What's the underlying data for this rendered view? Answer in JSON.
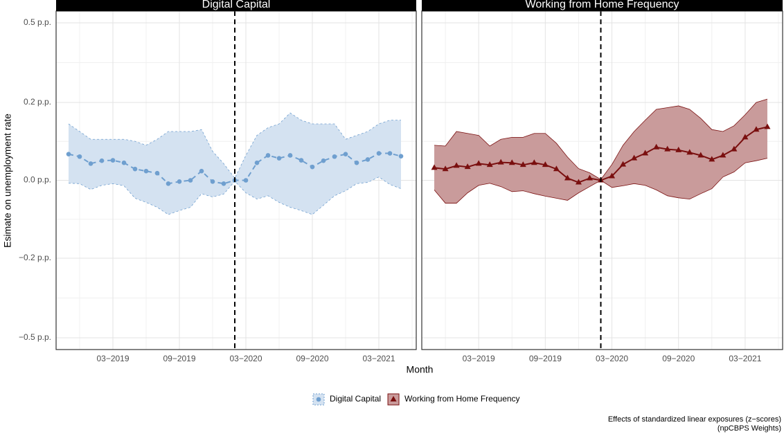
{
  "chart_data": [
    {
      "type": "line",
      "title": "Digital Capital",
      "xlabel": "Month",
      "ylabel": "Esimate on unemployment rate",
      "x": [
        "2018-11",
        "2018-12",
        "2019-01",
        "2019-02",
        "2019-03",
        "2019-04",
        "2019-05",
        "2019-06",
        "2019-07",
        "2019-08",
        "2019-09",
        "2019-10",
        "2019-11",
        "2019-12",
        "2020-01",
        "2020-02",
        "2020-03",
        "2020-04",
        "2020-05",
        "2020-06",
        "2020-07",
        "2020-08",
        "2020-09",
        "2020-10",
        "2020-11",
        "2020-12",
        "2021-01",
        "2021-02",
        "2021-03",
        "2021-04",
        "2021-05"
      ],
      "series": [
        {
          "name": "Digital Capital",
          "color": "#6f9fcf",
          "band_color": "#d4e2f1",
          "edge_color": "#6f9fcf",
          "linestyle": "dashed",
          "marker": "circle",
          "values": [
            0.063,
            0.057,
            0.04,
            0.047,
            0.048,
            0.042,
            0.027,
            0.022,
            0.017,
            -0.008,
            -0.003,
            0,
            0.022,
            -0.003,
            -0.008,
            0,
            0,
            0.042,
            0.06,
            0.053,
            0.06,
            0.048,
            0.032,
            0.047,
            0.057,
            0.063,
            0.042,
            0.05,
            0.065,
            0.065,
            0.058
          ],
          "upper": [
            0.14,
            0.12,
            0.1,
            0.1,
            0.1,
            0.1,
            0.095,
            0.085,
            0.1,
            0.12,
            0.12,
            0.12,
            0.125,
            0.07,
            0.04,
            0.005,
            0.06,
            0.11,
            0.13,
            0.14,
            0.17,
            0.15,
            0.14,
            0.14,
            0.14,
            0.1,
            0.11,
            0.12,
            0.14,
            0.15,
            0.15
          ],
          "lower": [
            -0.007,
            -0.008,
            -0.022,
            -0.012,
            -0.008,
            -0.013,
            -0.043,
            -0.053,
            -0.065,
            -0.083,
            -0.073,
            -0.065,
            -0.032,
            -0.04,
            -0.033,
            -0.002,
            -0.03,
            -0.045,
            -0.037,
            -0.053,
            -0.065,
            -0.073,
            -0.083,
            -0.06,
            -0.037,
            -0.025,
            -0.008,
            -0.005,
            0.008,
            -0.01,
            -0.02
          ]
        }
      ],
      "xlim": [
        "2018-10",
        "2021-06"
      ],
      "xticks": [
        {
          "value": "2019-03",
          "label": "03−2019"
        },
        {
          "value": "2019-09",
          "label": "09−2019"
        },
        {
          "value": "2020-03",
          "label": "03−2020"
        },
        {
          "value": "2020-09",
          "label": "09−2020"
        },
        {
          "value": "2021-03",
          "label": "03−2021"
        }
      ],
      "ylim": [
        -0.56,
        0.56
      ],
      "yscale": "pseudo_log",
      "yticks": [
        {
          "value": -0.5,
          "label": "−0.5 p.p."
        },
        {
          "value": -0.2,
          "label": "−0.2 p.p."
        },
        {
          "value": 0,
          "label": "0.0 p.p."
        },
        {
          "value": 0.2,
          "label": "0.2 p.p."
        },
        {
          "value": 0.5,
          "label": "0.5 p.p."
        }
      ],
      "vline": "2020-02",
      "grid": true
    },
    {
      "type": "line",
      "title": "Working from Home Frequency",
      "x": [
        "2018-11",
        "2018-12",
        "2019-01",
        "2019-02",
        "2019-03",
        "2019-04",
        "2019-05",
        "2019-06",
        "2019-07",
        "2019-08",
        "2019-09",
        "2019-10",
        "2019-11",
        "2019-12",
        "2020-01",
        "2020-02",
        "2020-03",
        "2020-04",
        "2020-05",
        "2020-06",
        "2020-07",
        "2020-08",
        "2020-09",
        "2020-10",
        "2020-11",
        "2020-12",
        "2021-01",
        "2021-02",
        "2021-03",
        "2021-04",
        "2021-05"
      ],
      "series": [
        {
          "name": "Working from Home Frequency",
          "color": "#7a0f0f",
          "band_color": "#c99b9b",
          "edge_color": "#7a0f0f",
          "linestyle": "solid",
          "marker": "triangle",
          "values": [
            0.03,
            0.027,
            0.035,
            0.032,
            0.04,
            0.037,
            0.043,
            0.042,
            0.037,
            0.042,
            0.037,
            0.027,
            0.005,
            -0.005,
            0.005,
            0,
            0.01,
            0.038,
            0.053,
            0.065,
            0.08,
            0.075,
            0.073,
            0.067,
            0.06,
            0.05,
            0.06,
            0.075,
            0.105,
            0.125,
            0.132
          ],
          "upper": [
            0.085,
            0.083,
            0.12,
            0.115,
            0.11,
            0.083,
            0.1,
            0.105,
            0.105,
            0.115,
            0.115,
            0.09,
            0.056,
            0.028,
            0.018,
            0.002,
            0.038,
            0.085,
            0.12,
            0.15,
            0.18,
            0.185,
            0.19,
            0.18,
            0.155,
            0.125,
            0.12,
            0.135,
            0.165,
            0.2,
            0.21
          ],
          "lower": [
            -0.023,
            -0.055,
            -0.055,
            -0.03,
            -0.012,
            -0.007,
            -0.015,
            -0.027,
            -0.025,
            -0.032,
            -0.038,
            -0.043,
            -0.048,
            -0.03,
            -0.015,
            0,
            -0.017,
            -0.013,
            -0.008,
            -0.012,
            -0.023,
            -0.037,
            -0.042,
            -0.045,
            -0.032,
            -0.02,
            0.008,
            0.02,
            0.042,
            0.047,
            0.053
          ]
        }
      ],
      "xlim": [
        "2018-10",
        "2021-06"
      ],
      "xticks": [
        {
          "value": "2019-03",
          "label": "03−2019"
        },
        {
          "value": "2019-09",
          "label": "09−2019"
        },
        {
          "value": "2020-03",
          "label": "03−2020"
        },
        {
          "value": "2020-09",
          "label": "09−2020"
        },
        {
          "value": "2021-03",
          "label": "03−2021"
        }
      ],
      "vline": "2020-02",
      "grid": true
    }
  ],
  "caption": [
    "Effects of standardized linear exposures (z−scores)",
    "(npCBPS Weights)"
  ]
}
